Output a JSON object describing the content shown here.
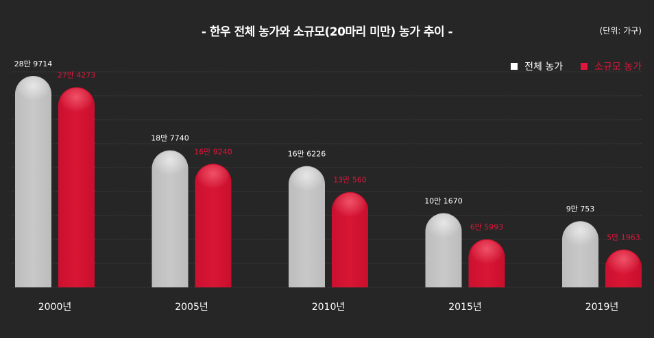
{
  "chart_data": {
    "type": "bar",
    "title": "- 한우 전체 농가와 소규모(20마리 미만) 농가 추이 -",
    "unit_label": "(단위: 가구)",
    "categories": [
      "2000년",
      "2005년",
      "2010년",
      "2015년",
      "2019년"
    ],
    "series": [
      {
        "name": "전체 농가",
        "color": "#c4c4c4",
        "values": [
          289714,
          187740,
          166226,
          101670,
          90753
        ],
        "labels": [
          "28만 9714",
          "18만 7740",
          "16만 6226",
          "10만 1670",
          "9만 753"
        ]
      },
      {
        "name": "소규모 농가",
        "color": "#d4122e",
        "values": [
          274273,
          169240,
          130560,
          65993,
          51963
        ],
        "labels": [
          "27만 4273",
          "16만 9240",
          "13만 560",
          "6만 5993",
          "5만 1963"
        ]
      }
    ],
    "ylim": [
      0,
      300000
    ],
    "grid": true,
    "legend_position": "top-right"
  }
}
